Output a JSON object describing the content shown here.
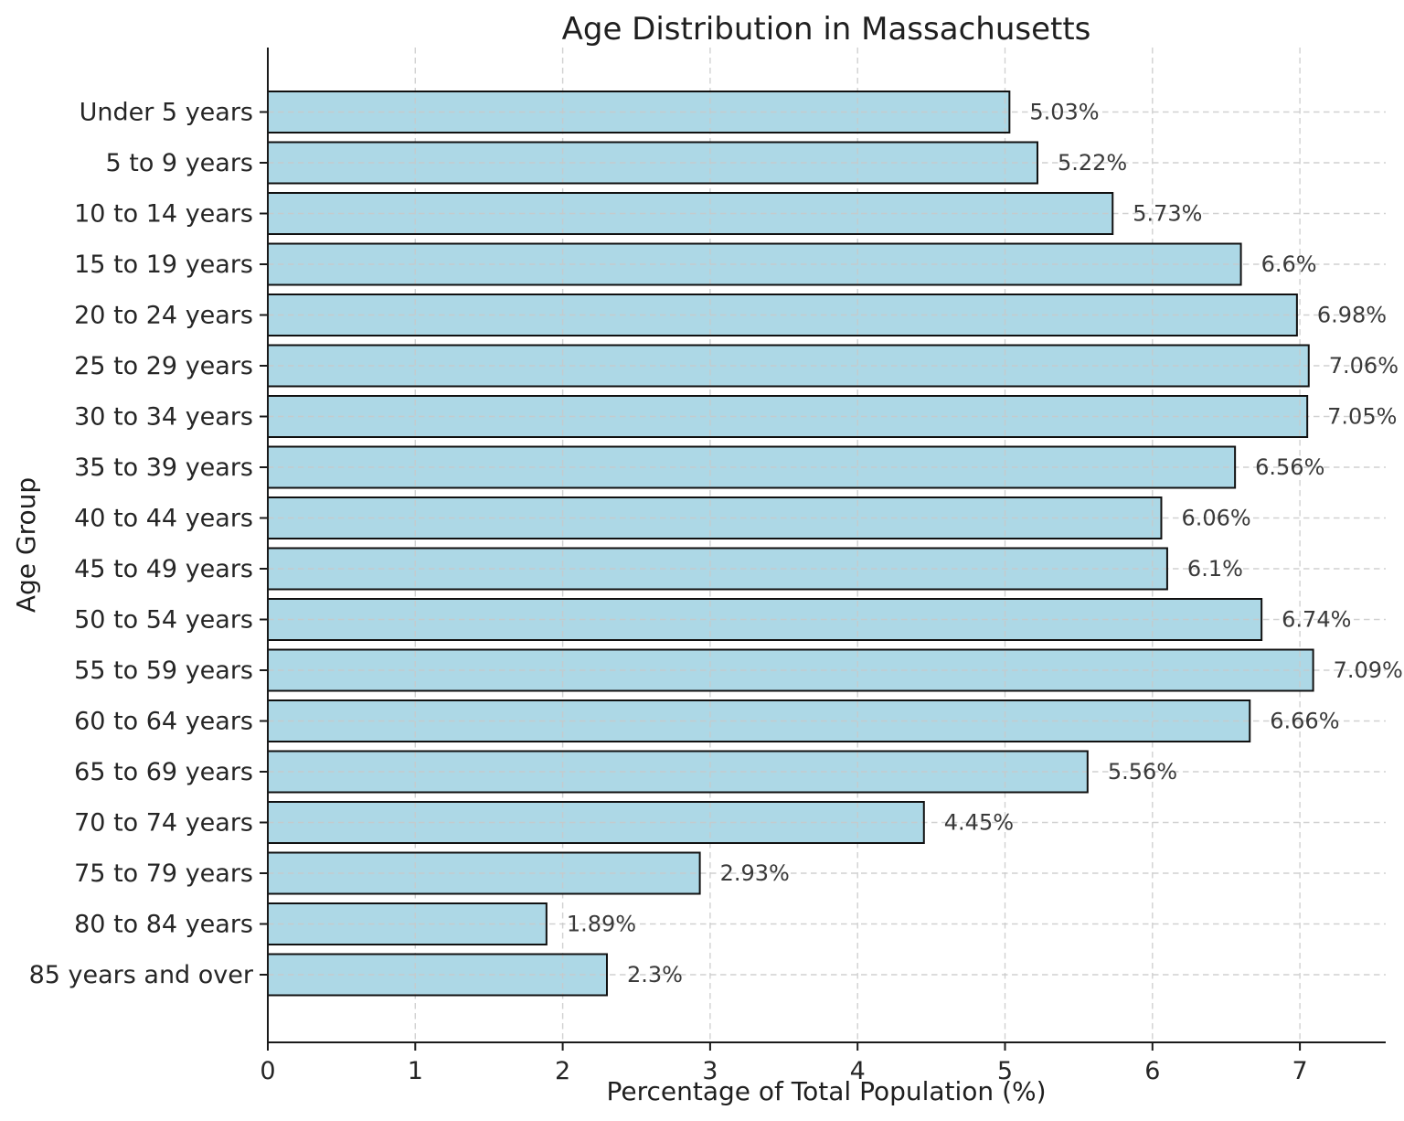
{
  "chart_data": {
    "type": "bar",
    "orientation": "horizontal",
    "title": "Age Distribution in Massachusetts",
    "xlabel": "Percentage of Total Population (%)",
    "ylabel": "Age Group",
    "categories": [
      "Under 5 years",
      "5 to 9 years",
      "10 to 14 years",
      "15 to 19 years",
      "20 to 24 years",
      "25 to 29 years",
      "30 to 34 years",
      "35 to 39 years",
      "40 to 44 years",
      "45 to 49 years",
      "50 to 54 years",
      "55 to 59 years",
      "60 to 64 years",
      "65 to 69 years",
      "70 to 74 years",
      "75 to 79 years",
      "80 to 84 years",
      "85 years and over"
    ],
    "values": [
      5.03,
      5.22,
      5.73,
      6.6,
      6.98,
      7.06,
      7.05,
      6.56,
      6.06,
      6.1,
      6.74,
      7.09,
      6.66,
      5.56,
      4.45,
      2.93,
      1.89,
      2.3
    ],
    "value_labels": [
      "5.03%",
      "5.22%",
      "5.73%",
      "6.6%",
      "6.98%",
      "7.06%",
      "7.05%",
      "6.56%",
      "6.06%",
      "6.1%",
      "6.74%",
      "7.09%",
      "6.66%",
      "5.56%",
      "4.45%",
      "2.93%",
      "1.89%",
      "2.3%"
    ],
    "x_ticks": [
      0,
      1,
      2,
      3,
      4,
      5,
      6,
      7
    ],
    "x_tick_labels": [
      "0",
      "1",
      "2",
      "3",
      "4",
      "5",
      "6",
      "7"
    ],
    "xlim": [
      0,
      7.58
    ],
    "grid": "dashed light-gray, both axes",
    "legend": "none",
    "bar_color": "#ADD8E6",
    "bar_edge_color": "#111111",
    "background": "#ffffff"
  }
}
